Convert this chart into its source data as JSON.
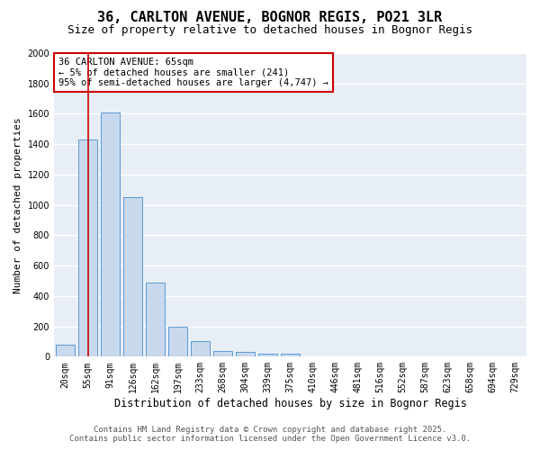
{
  "title": "36, CARLTON AVENUE, BOGNOR REGIS, PO21 3LR",
  "subtitle": "Size of property relative to detached houses in Bognor Regis",
  "xlabel": "Distribution of detached houses by size in Bognor Regis",
  "ylabel": "Number of detached properties",
  "bar_labels": [
    "20sqm",
    "55sqm",
    "91sqm",
    "126sqm",
    "162sqm",
    "197sqm",
    "233sqm",
    "268sqm",
    "304sqm",
    "339sqm",
    "375sqm",
    "410sqm",
    "446sqm",
    "481sqm",
    "516sqm",
    "552sqm",
    "587sqm",
    "623sqm",
    "658sqm",
    "694sqm",
    "729sqm"
  ],
  "bar_values": [
    80,
    1430,
    1610,
    1050,
    490,
    200,
    105,
    40,
    30,
    20,
    20,
    0,
    0,
    0,
    0,
    0,
    0,
    0,
    0,
    0,
    0
  ],
  "bar_color": "#c9d9ed",
  "bar_edgecolor": "#5b9bd5",
  "bg_color": "#e8eef6",
  "grid_color": "#ffffff",
  "annotation_text": "36 CARLTON AVENUE: 65sqm\n← 5% of detached houses are smaller (241)\n95% of semi-detached houses are larger (4,747) →",
  "vline_color": "#cc0000",
  "ylim": [
    0,
    2000
  ],
  "yticks": [
    0,
    200,
    400,
    600,
    800,
    1000,
    1200,
    1400,
    1600,
    1800,
    2000
  ],
  "footer_line1": "Contains HM Land Registry data © Crown copyright and database right 2025.",
  "footer_line2": "Contains public sector information licensed under the Open Government Licence v3.0.",
  "title_fontsize": 11,
  "subtitle_fontsize": 9,
  "xlabel_fontsize": 8.5,
  "ylabel_fontsize": 8,
  "tick_fontsize": 7,
  "annotation_fontsize": 7.5,
  "footer_fontsize": 6.5
}
